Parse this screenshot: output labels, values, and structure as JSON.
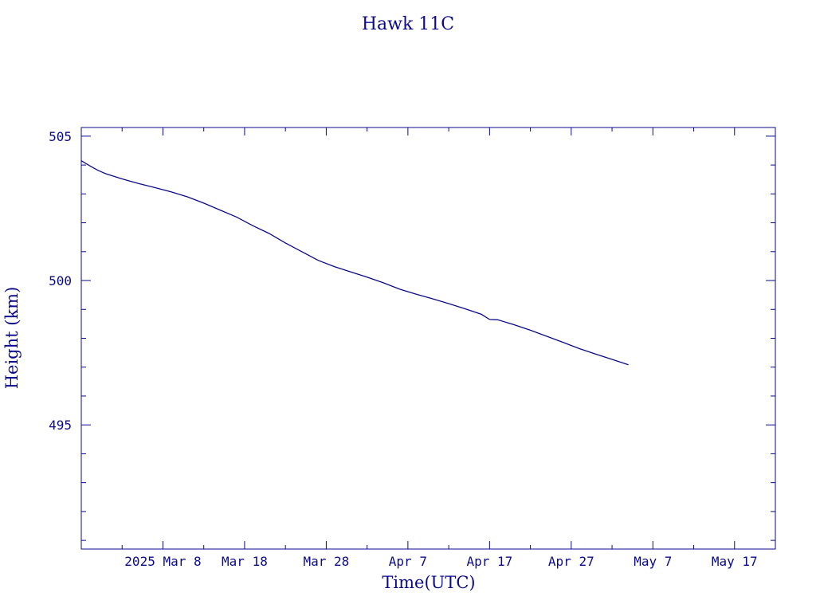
{
  "chart_data": {
    "type": "line",
    "title": "Hawk 11C",
    "xlabel": "Time(UTC)",
    "ylabel": "Height (km)",
    "x_ticks": [
      {
        "date": "2025-03-08",
        "label": "2025 Mar  8"
      },
      {
        "date": "2025-03-18",
        "label": "Mar 18"
      },
      {
        "date": "2025-03-28",
        "label": "Mar 28"
      },
      {
        "date": "2025-04-07",
        "label": "Apr  7"
      },
      {
        "date": "2025-04-17",
        "label": "Apr 17"
      },
      {
        "date": "2025-04-27",
        "label": "Apr 27"
      },
      {
        "date": "2025-05-07",
        "label": "May  7"
      },
      {
        "date": "2025-05-17",
        "label": "May 17"
      }
    ],
    "xlim": [
      "2025-02-26",
      "2025-05-22"
    ],
    "ylim": [
      490.7,
      505.3
    ],
    "y_ticks": [
      495,
      500,
      505
    ],
    "grid": false,
    "series": [
      {
        "color": "#0a0a8c",
        "points": [
          {
            "x": "2025-02-26",
            "y": 504.15
          },
          {
            "x": "2025-02-27",
            "y": 503.98
          },
          {
            "x": "2025-02-28",
            "y": 503.82
          },
          {
            "x": "2025-03-01",
            "y": 503.7
          },
          {
            "x": "2025-03-03",
            "y": 503.52
          },
          {
            "x": "2025-03-05",
            "y": 503.36
          },
          {
            "x": "2025-03-07",
            "y": 503.22
          },
          {
            "x": "2025-03-09",
            "y": 503.07
          },
          {
            "x": "2025-03-11",
            "y": 502.9
          },
          {
            "x": "2025-03-13",
            "y": 502.68
          },
          {
            "x": "2025-03-15",
            "y": 502.44
          },
          {
            "x": "2025-03-17",
            "y": 502.2
          },
          {
            "x": "2025-03-19",
            "y": 501.9
          },
          {
            "x": "2025-03-21",
            "y": 501.63
          },
          {
            "x": "2025-03-23",
            "y": 501.3
          },
          {
            "x": "2025-03-25",
            "y": 501.0
          },
          {
            "x": "2025-03-27",
            "y": 500.7
          },
          {
            "x": "2025-03-29",
            "y": 500.48
          },
          {
            "x": "2025-03-31",
            "y": 500.3
          },
          {
            "x": "2025-04-02",
            "y": 500.12
          },
          {
            "x": "2025-04-04",
            "y": 499.92
          },
          {
            "x": "2025-04-06",
            "y": 499.7
          },
          {
            "x": "2025-04-08",
            "y": 499.53
          },
          {
            "x": "2025-04-10",
            "y": 499.37
          },
          {
            "x": "2025-04-12",
            "y": 499.2
          },
          {
            "x": "2025-04-14",
            "y": 499.02
          },
          {
            "x": "2025-04-16",
            "y": 498.83
          },
          {
            "x": "2025-04-17",
            "y": 498.65
          },
          {
            "x": "2025-04-18",
            "y": 498.64
          },
          {
            "x": "2025-04-20",
            "y": 498.47
          },
          {
            "x": "2025-04-22",
            "y": 498.28
          },
          {
            "x": "2025-04-24",
            "y": 498.07
          },
          {
            "x": "2025-04-26",
            "y": 497.86
          },
          {
            "x": "2025-04-28",
            "y": 497.64
          },
          {
            "x": "2025-04-30",
            "y": 497.45
          },
          {
            "x": "2025-05-02",
            "y": 497.27
          },
          {
            "x": "2025-05-04",
            "y": 497.08
          }
        ]
      }
    ]
  }
}
